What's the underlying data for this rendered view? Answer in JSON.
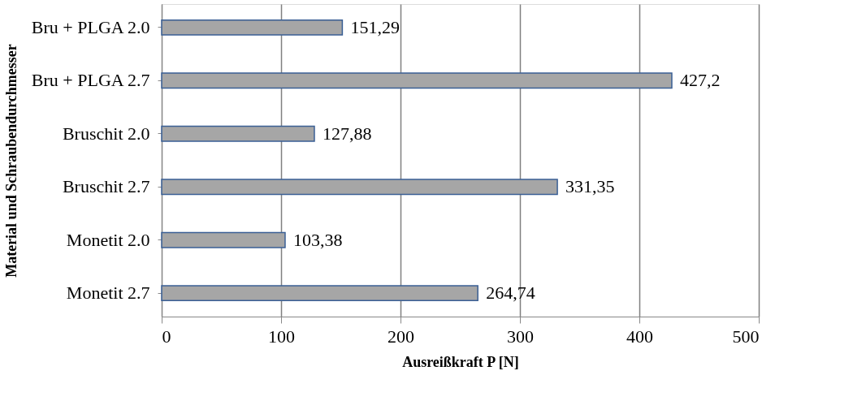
{
  "chart_data": {
    "type": "bar",
    "orientation": "horizontal",
    "xlabel": "Ausreißkraft P [N]",
    "ylabel": "Material und Schraubendurchmesser",
    "categories": [
      "Bru + PLGA 2.0",
      "Bru + PLGA 2.7",
      "Bruschit 2.0",
      "Bruschit 2.7",
      "Monetit 2.0",
      "Monetit 2.7"
    ],
    "values": [
      151.29,
      427.2,
      127.88,
      331.35,
      103.38,
      264.74
    ],
    "value_labels": [
      "151,29",
      "427,2",
      "127,88",
      "331,35",
      "103,38",
      "264,74"
    ],
    "color": "#a6a6a6",
    "xlim": [
      0,
      500
    ],
    "xticks": [
      0,
      100,
      200,
      300,
      400,
      500
    ],
    "grid": "x"
  }
}
